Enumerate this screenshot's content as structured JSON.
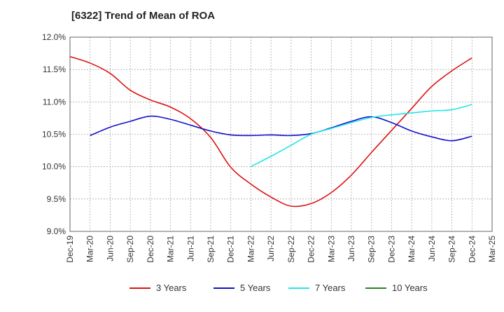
{
  "chart_data": {
    "type": "line",
    "title": "[6322]  Trend of Mean of ROA",
    "xlabel": "",
    "ylabel": "",
    "ylim": [
      9.0,
      12.0
    ],
    "yticks": [
      "9.0%",
      "9.5%",
      "10.0%",
      "10.5%",
      "11.0%",
      "11.5%",
      "12.0%"
    ],
    "ytick_values": [
      9.0,
      9.5,
      10.0,
      10.5,
      11.0,
      11.5,
      12.0
    ],
    "x_labels": [
      "Dec-19",
      "Mar-20",
      "Jun-20",
      "Sep-20",
      "Dec-20",
      "Mar-21",
      "Jun-21",
      "Sep-21",
      "Dec-21",
      "Mar-22",
      "Jun-22",
      "Sep-22",
      "Dec-22",
      "Mar-23",
      "Jun-23",
      "Sep-23",
      "Dec-23",
      "Mar-24",
      "Jun-24",
      "Sep-24",
      "Dec-24",
      "Mar-25"
    ],
    "grid": true,
    "legend_position": "bottom",
    "series": [
      {
        "name": "3 Years",
        "color": "#dd1111",
        "points": [
          [
            "Dec-19",
            11.7
          ],
          [
            "Mar-20",
            11.6
          ],
          [
            "Jun-20",
            11.44
          ],
          [
            "Sep-20",
            11.18
          ],
          [
            "Dec-20",
            11.03
          ],
          [
            "Mar-21",
            10.92
          ],
          [
            "Jun-21",
            10.74
          ],
          [
            "Sep-21",
            10.45
          ],
          [
            "Dec-21",
            9.99
          ],
          [
            "Mar-22",
            9.73
          ],
          [
            "Jun-22",
            9.53
          ],
          [
            "Sep-22",
            9.39
          ],
          [
            "Dec-22",
            9.43
          ],
          [
            "Mar-23",
            9.6
          ],
          [
            "Jun-23",
            9.87
          ],
          [
            "Sep-23",
            10.22
          ],
          [
            "Dec-23",
            10.56
          ],
          [
            "Mar-24",
            10.9
          ],
          [
            "Jun-24",
            11.24
          ],
          [
            "Sep-24",
            11.48
          ],
          [
            "Dec-24",
            11.68
          ]
        ]
      },
      {
        "name": "5 Years",
        "color": "#1111cc",
        "points": [
          [
            "Mar-20",
            10.48
          ],
          [
            "Jun-20",
            10.61
          ],
          [
            "Sep-20",
            10.7
          ],
          [
            "Dec-20",
            10.78
          ],
          [
            "Mar-21",
            10.73
          ],
          [
            "Jun-21",
            10.64
          ],
          [
            "Sep-21",
            10.55
          ],
          [
            "Dec-21",
            10.49
          ],
          [
            "Mar-22",
            10.48
          ],
          [
            "Jun-22",
            10.49
          ],
          [
            "Sep-22",
            10.48
          ],
          [
            "Dec-22",
            10.51
          ],
          [
            "Mar-23",
            10.6
          ],
          [
            "Jun-23",
            10.7
          ],
          [
            "Sep-23",
            10.77
          ],
          [
            "Dec-23",
            10.68
          ],
          [
            "Mar-24",
            10.55
          ],
          [
            "Jun-24",
            10.46
          ],
          [
            "Sep-24",
            10.4
          ],
          [
            "Dec-24",
            10.47
          ]
        ]
      },
      {
        "name": "7 Years",
        "color": "#22e5e5",
        "points": [
          [
            "Mar-22",
            10.0
          ],
          [
            "Jun-22",
            10.16
          ],
          [
            "Sep-22",
            10.33
          ],
          [
            "Dec-22",
            10.5
          ],
          [
            "Mar-23",
            10.59
          ],
          [
            "Jun-23",
            10.68
          ],
          [
            "Sep-23",
            10.76
          ],
          [
            "Dec-23",
            10.8
          ],
          [
            "Mar-24",
            10.83
          ],
          [
            "Jun-24",
            10.86
          ],
          [
            "Sep-24",
            10.88
          ],
          [
            "Dec-24",
            10.96
          ]
        ]
      },
      {
        "name": "10 Years",
        "color": "#228822",
        "points": []
      }
    ]
  }
}
